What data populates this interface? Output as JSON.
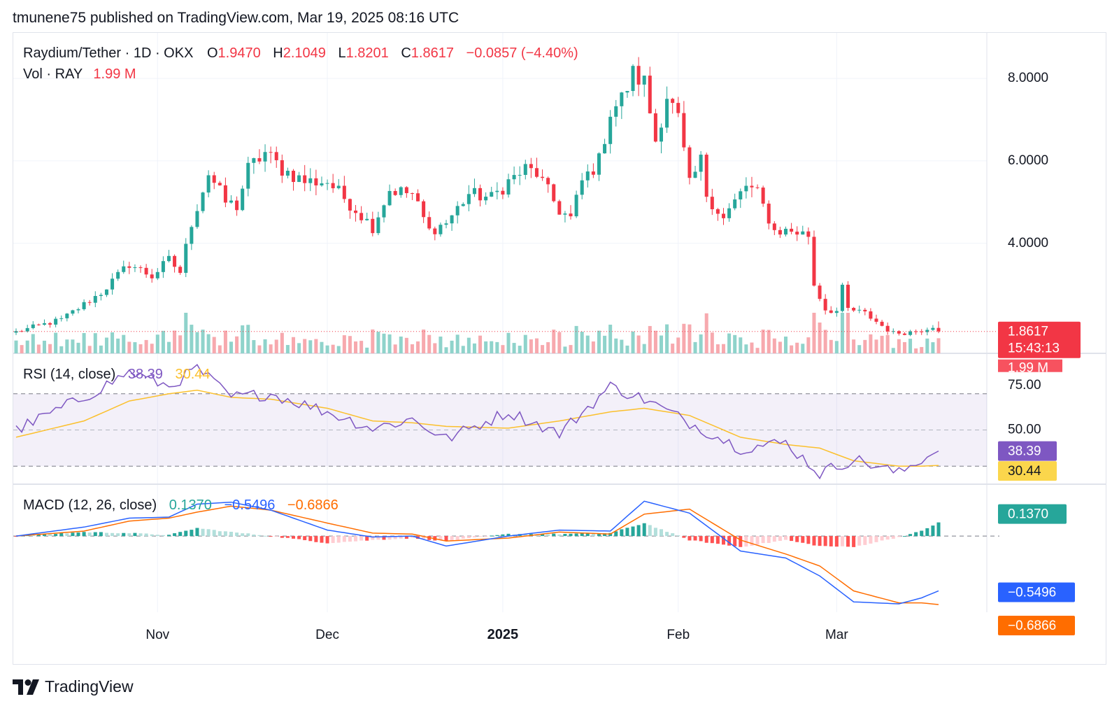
{
  "publish_line": "tmunene75 published on TradingView.com, Mar 19, 2025 08:16 UTC",
  "brand": "TradingView",
  "colors": {
    "up": "#26a69a",
    "down": "#f23645",
    "rsi": "#7e57c2",
    "rsi_ma": "#fbc02d",
    "macd": "#2962ff",
    "signal": "#ff6d00"
  },
  "header": {
    "symbol": "Raydium/Tether · 1D · OKX",
    "o_label": "O",
    "o": "1.9470",
    "h_label": "H",
    "h": "2.1049",
    "l_label": "L",
    "l": "1.8201",
    "c_label": "C",
    "c": "1.8617",
    "change": "−0.0857 (−4.40%)",
    "vol_label": "Vol · RAY",
    "vol": "1.99 M"
  },
  "price_badge": {
    "price": "1.8617",
    "countdown": "15:43:13",
    "volume": "1.99 M"
  },
  "rsi_header": {
    "label": "RSI (14, close)",
    "rsi": "38.39",
    "ma": "30.44"
  },
  "macd_header": {
    "label": "MACD (12, 26, close)",
    "hist": "0.1370",
    "macd": "−0.5496",
    "signal": "−0.6866"
  },
  "chart_data": [
    {
      "type": "candlestick",
      "title": "Raydium/Tether · 1D · OKX",
      "x_ticks": [
        "Nov",
        "Dec",
        "2025",
        "Feb",
        "Mar"
      ],
      "y_ticks": [
        "8.0000",
        "6.0000",
        "4.0000"
      ],
      "ylim": [
        1.5,
        8.8
      ],
      "anchors": [
        {
          "date": "Oct 07",
          "price": 1.85
        },
        {
          "date": "Oct 15",
          "price": 2.15
        },
        {
          "date": "Oct 22",
          "price": 2.8
        },
        {
          "date": "Oct 27",
          "price": 3.5
        },
        {
          "date": "Oct 31",
          "price": 3.2
        },
        {
          "date": "Nov 03",
          "price": 3.6
        },
        {
          "date": "Nov 05",
          "price": 3.3
        },
        {
          "date": "Nov 07",
          "price": 4.5
        },
        {
          "date": "Nov 10",
          "price": 5.7
        },
        {
          "date": "Nov 13",
          "price": 5.0
        },
        {
          "date": "Nov 15",
          "price": 4.9
        },
        {
          "date": "Nov 17",
          "price": 5.8
        },
        {
          "date": "Nov 20",
          "price": 6.2
        },
        {
          "date": "Nov 23",
          "price": 5.8
        },
        {
          "date": "Nov 27",
          "price": 5.5
        },
        {
          "date": "Dec 01",
          "price": 5.5
        },
        {
          "date": "Dec 04",
          "price": 5.1
        },
        {
          "date": "Dec 09",
          "price": 4.4
        },
        {
          "date": "Dec 12",
          "price": 5.3
        },
        {
          "date": "Dec 16",
          "price": 5.2
        },
        {
          "date": "Dec 19",
          "price": 4.3
        },
        {
          "date": "Dec 22",
          "price": 4.5
        },
        {
          "date": "Dec 26",
          "price": 5.2
        },
        {
          "date": "Dec 30",
          "price": 5.1
        },
        {
          "date": "Jan 02",
          "price": 5.5
        },
        {
          "date": "Jan 05",
          "price": 5.8
        },
        {
          "date": "Jan 07",
          "price": 5.7
        },
        {
          "date": "Jan 11",
          "price": 4.8
        },
        {
          "date": "Jan 13",
          "price": 4.6
        },
        {
          "date": "Jan 15",
          "price": 5.5
        },
        {
          "date": "Jan 18",
          "price": 6.0
        },
        {
          "date": "Jan 20",
          "price": 7.2
        },
        {
          "date": "Jan 22",
          "price": 7.5
        },
        {
          "date": "Jan 24",
          "price": 8.1
        },
        {
          "date": "Jan 26",
          "price": 7.9
        },
        {
          "date": "Jan 28",
          "price": 6.5
        },
        {
          "date": "Jan 30",
          "price": 7.6
        },
        {
          "date": "Feb 01",
          "price": 7.0
        },
        {
          "date": "Feb 03",
          "price": 5.4
        },
        {
          "date": "Feb 05",
          "price": 6.0
        },
        {
          "date": "Feb 06",
          "price": 5.2
        },
        {
          "date": "Feb 09",
          "price": 4.6
        },
        {
          "date": "Feb 13",
          "price": 5.4
        },
        {
          "date": "Feb 15",
          "price": 5.2
        },
        {
          "date": "Feb 18",
          "price": 4.3
        },
        {
          "date": "Feb 21",
          "price": 4.3
        },
        {
          "date": "Feb 24",
          "price": 4.2
        },
        {
          "date": "Feb 25",
          "price": 3.0
        },
        {
          "date": "Feb 27",
          "price": 2.4
        },
        {
          "date": "Mar 01",
          "price": 2.35
        },
        {
          "date": "Mar 02",
          "price": 2.9
        },
        {
          "date": "Mar 03",
          "price": 2.4
        },
        {
          "date": "Mar 06",
          "price": 2.3
        },
        {
          "date": "Mar 09",
          "price": 2.0
        },
        {
          "date": "Mar 11",
          "price": 1.82
        },
        {
          "date": "Mar 14",
          "price": 1.85
        },
        {
          "date": "Mar 16",
          "price": 1.9
        },
        {
          "date": "Mar 18",
          "price": 2.0
        },
        {
          "date": "Mar 19",
          "price": 1.8617
        }
      ],
      "last": {
        "open": 1.947,
        "high": 2.1049,
        "low": 1.8201,
        "close": 1.8617,
        "volume": "1.99 M"
      }
    },
    {
      "type": "line",
      "title": "RSI (14, close)",
      "y_ticks": [
        "75.00",
        "50.00"
      ],
      "ylim": [
        22,
        90
      ],
      "band": [
        30,
        70
      ],
      "x": [
        "Oct 07",
        "Oct 19",
        "Oct 27",
        "Nov 03",
        "Nov 08",
        "Nov 14",
        "Nov 21",
        "Dec 01",
        "Dec 09",
        "Dec 16",
        "Dec 22",
        "Jan 02",
        "Jan 11",
        "Jan 20",
        "Jan 26",
        "Feb 03",
        "Feb 12",
        "Feb 20",
        "Feb 26",
        "Mar 04",
        "Mar 12",
        "Mar 16",
        "Mar 19"
      ],
      "series": [
        {
          "name": "RSI",
          "values": [
            50,
            68,
            82,
            74,
            84,
            68,
            70,
            60,
            51,
            56,
            45,
            60,
            48,
            74,
            67,
            54,
            40,
            43,
            26,
            34,
            26,
            34,
            38.39
          ]
        },
        {
          "name": "MA",
          "values": [
            46,
            55,
            66,
            70,
            72,
            68,
            67,
            62,
            55,
            54,
            52,
            51,
            55,
            60,
            62,
            58,
            46,
            42,
            40,
            33,
            30,
            30,
            30.44
          ]
        }
      ]
    },
    {
      "type": "line",
      "title": "MACD (12, 26, close)",
      "ylim": [
        -0.75,
        0.45
      ],
      "zero_line": 0,
      "x": [
        "Oct 07",
        "Oct 19",
        "Oct 27",
        "Nov 03",
        "Nov 08",
        "Nov 14",
        "Nov 21",
        "Dec 01",
        "Dec 09",
        "Dec 16",
        "Dec 22",
        "Jan 02",
        "Jan 11",
        "Jan 20",
        "Jan 26",
        "Feb 03",
        "Feb 12",
        "Feb 20",
        "Feb 26",
        "Mar 04",
        "Mar 12",
        "Mar 16",
        "Mar 19"
      ],
      "series": [
        {
          "name": "MACD",
          "values": [
            0.0,
            0.09,
            0.18,
            0.19,
            0.32,
            0.34,
            0.26,
            0.06,
            -0.01,
            0.0,
            -0.1,
            0.0,
            0.06,
            0.05,
            0.35,
            0.23,
            -0.15,
            -0.22,
            -0.4,
            -0.66,
            -0.68,
            -0.62,
            -0.5496
          ]
        },
        {
          "name": "Signal",
          "values": [
            0.0,
            0.05,
            0.15,
            0.18,
            0.24,
            0.3,
            0.26,
            0.13,
            0.03,
            0.02,
            -0.05,
            -0.02,
            0.04,
            0.02,
            0.22,
            0.27,
            -0.04,
            -0.18,
            -0.3,
            -0.55,
            -0.67,
            -0.67,
            -0.6866
          ]
        },
        {
          "name": "Histogram",
          "values": [
            0.0,
            0.04,
            0.03,
            0.01,
            0.08,
            0.04,
            0.0,
            -0.07,
            -0.04,
            -0.02,
            -0.05,
            0.02,
            0.02,
            0.03,
            0.13,
            -0.04,
            -0.11,
            -0.04,
            -0.1,
            -0.11,
            -0.01,
            0.05,
            0.137
          ]
        }
      ]
    }
  ]
}
